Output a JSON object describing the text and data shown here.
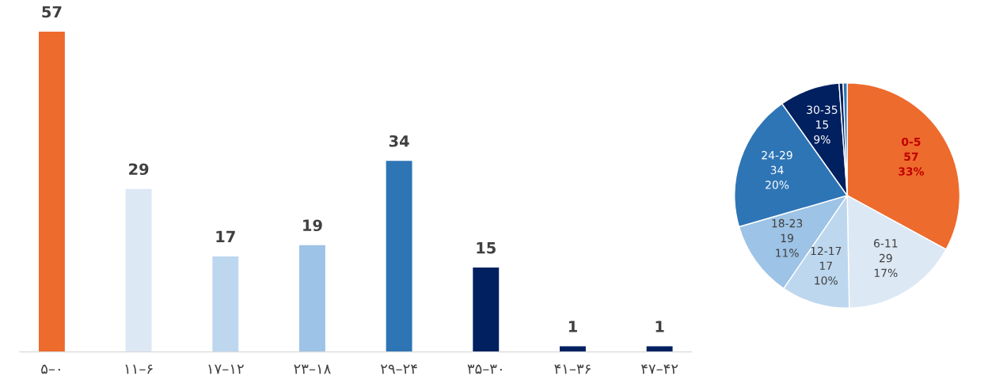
{
  "chart_data": [
    {
      "type": "bar",
      "categories": [
        "۵–۰",
        "۱۱–۶",
        "۱۷–۱۲",
        "۲۳–۱۸",
        "۲۹–۲۴",
        "۳۵–۳۰",
        "۴۱–۳۶",
        "۴۷–۴۲"
      ],
      "values": [
        57,
        29,
        17,
        19,
        34,
        15,
        1,
        1
      ],
      "colors": [
        "#ed6b2d",
        "#dde8f5",
        "#bdd7ee",
        "#9dc3e6",
        "#2e75b6",
        "#002060",
        "#002060",
        "#002060"
      ],
      "data_labels": true,
      "grid": false,
      "legend": false
    },
    {
      "type": "pie",
      "categories": [
        "0-5",
        "6-11",
        "12-17",
        "18-23",
        "24-29",
        "30-35",
        null,
        null
      ],
      "values": [
        57,
        29,
        17,
        19,
        34,
        15,
        1,
        1
      ],
      "colors": [
        "#ed6b2d",
        "#dde8f5",
        "#bdd7ee",
        "#9dc3e6",
        "#2e75b6",
        "#002060",
        "#002060",
        "#2e75b6"
      ],
      "value_labels": [
        "57\n33%",
        "29\n17%",
        "17\n10%",
        "19\n11%",
        "34\n20%",
        "15\n9%",
        null,
        null
      ],
      "legend": false
    }
  ]
}
